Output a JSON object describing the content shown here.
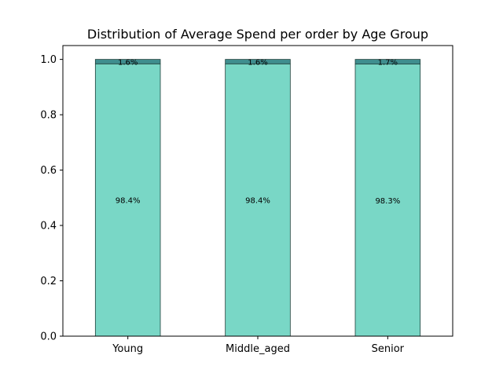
{
  "chart_data": {
    "type": "bar",
    "stacked": true,
    "title": "Distribution of Average Spend per order by Age Group",
    "xlabel": "",
    "ylabel": "",
    "categories": [
      "Young",
      "Middle_aged",
      "Senior"
    ],
    "series": [
      {
        "values": [
          0.984,
          0.984,
          0.983
        ],
        "labels": [
          "98.4%",
          "98.4%",
          "98.3%"
        ],
        "color": "#79d7c6"
      },
      {
        "values": [
          0.016,
          0.016,
          0.017
        ],
        "labels": [
          "1.6%",
          "1.6%",
          "1.7%"
        ],
        "color": "#3f8e8f"
      }
    ],
    "ylim": [
      0,
      1.05
    ],
    "yticks": [
      "0.0",
      "0.2",
      "0.4",
      "0.6",
      "0.8",
      "1.0"
    ],
    "ytick_values": [
      0.0,
      0.2,
      0.4,
      0.6,
      0.8,
      1.0
    ],
    "grid": false,
    "legend": "none",
    "edge_color": "#1f3f3a"
  }
}
